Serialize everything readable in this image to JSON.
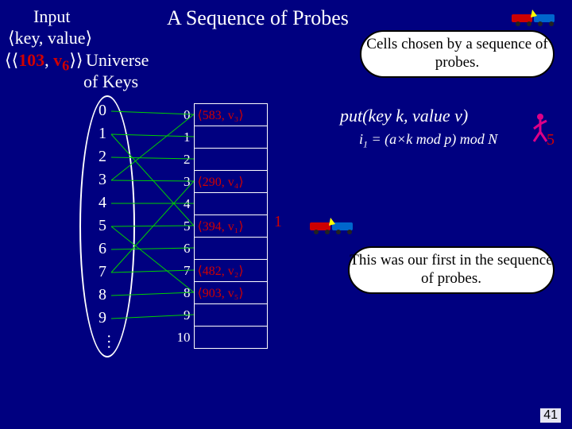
{
  "title": "A Sequence of Probes",
  "input_label": "Input",
  "keyvalue_label": "⟨key, value⟩",
  "tuple_prefix": "⟨⟨",
  "tuple_key": "103",
  "tuple_sep": ", ",
  "tuple_val": "v",
  "tuple_sub": "6",
  "tuple_suffix": "⟩⟩",
  "universe_label": "Universe",
  "ofkeys_label": "of Keys",
  "callout_top": "Cells chosen by a sequence of probes.",
  "put_label": "put(key k, value v)",
  "formula_html": "i<sub>1</sub> = (a×k mod p) mod N",
  "five_label": "5",
  "one_label": "1",
  "callout_bottom": "This was our first in the sequence of probes.",
  "page_num": "41",
  "universe_numbers": [
    "0",
    "1",
    "2",
    "3",
    "4",
    "5",
    "6",
    "7",
    "8",
    "9"
  ],
  "table_rows": [
    {
      "idx": "0",
      "val": "⟨583, v₃⟩"
    },
    {
      "idx": "1",
      "val": ""
    },
    {
      "idx": "2",
      "val": ""
    },
    {
      "idx": "3",
      "val": "⟨290, v₄⟩"
    },
    {
      "idx": "4",
      "val": ""
    },
    {
      "idx": "5",
      "val": "⟨394, v₁⟩"
    },
    {
      "idx": "6",
      "val": ""
    },
    {
      "idx": "7",
      "val": "⟨482, v₂⟩"
    },
    {
      "idx": "8",
      "val": "⟨903, v₅⟩"
    },
    {
      "idx": "9",
      "val": ""
    },
    {
      "idx": "10",
      "val": ""
    }
  ],
  "colors": {
    "bg": "#000080",
    "red": "#d00000",
    "white": "#ffffff",
    "line": "#00d000"
  }
}
